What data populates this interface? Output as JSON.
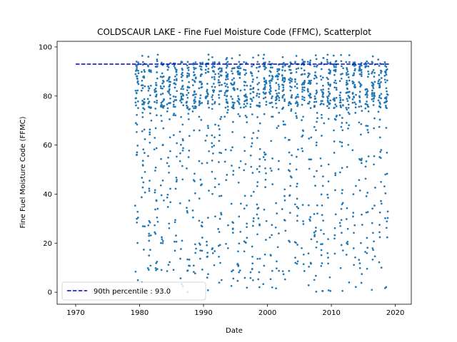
{
  "chart_data": {
    "type": "scatter",
    "title": "COLDSCAUR LAKE - Fine Fuel Moisture Code (FFMC), Scatterplot",
    "xlabel": "Date",
    "ylabel": "Fine Fuel Moisture Code (FFMC)",
    "xlim": [
      1967.1,
      2022.5
    ],
    "ylim": [
      -4.9,
      102.3
    ],
    "x_ticks": [
      "1970",
      "1980",
      "1990",
      "2000",
      "2010",
      "2020"
    ],
    "y_ticks": [
      "0",
      "20",
      "40",
      "60",
      "80",
      "100"
    ],
    "grid": false,
    "legend_position": "lower-left",
    "point_color": "#1f77b4",
    "series": [
      {
        "kind": "daily fire-season observations",
        "year_start": 1979,
        "year_end": 2018,
        "season_start_fraction": 0.3,
        "season_end_fraction": 0.85,
        "observations_per_season": 45,
        "y_min": 0.0,
        "y_max": 97.0,
        "typical_range": [
          75,
          94
        ]
      }
    ],
    "reference_line": {
      "label": "90th percentile : 93.0",
      "value": 93.0,
      "x_range": [
        1970,
        2019
      ],
      "color": "#0000cc",
      "style": "dashed"
    }
  }
}
